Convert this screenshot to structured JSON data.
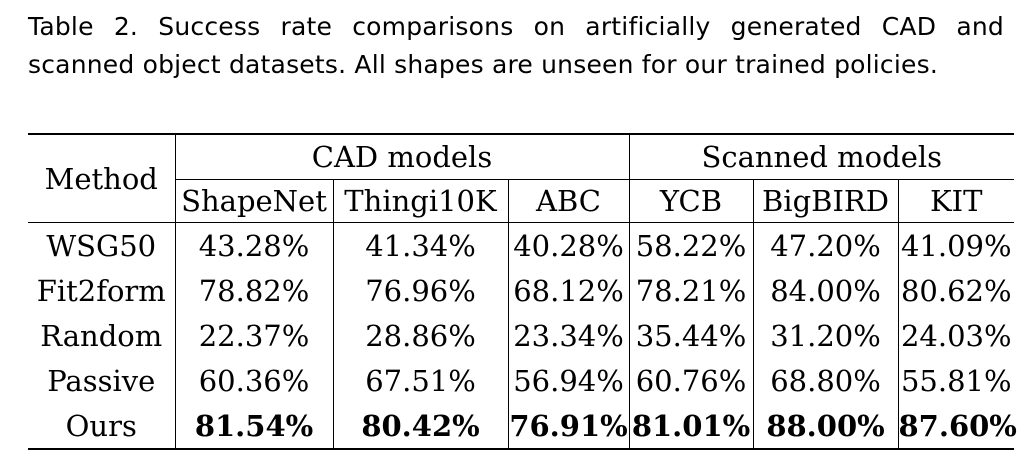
{
  "caption": {
    "line1": "Table 2. Success rate comparisons on artificially generated CAD and",
    "line2": "scanned object datasets. All shapes are unseen for our trained policies."
  },
  "table": {
    "method_header": "Method",
    "group_headers": [
      "CAD models",
      "Scanned models"
    ],
    "columns": [
      "ShapeNet",
      "Thingi10K",
      "ABC",
      "YCB",
      "BigBIRD",
      "KIT"
    ],
    "rows": [
      {
        "method": "WSG50",
        "values": [
          "43.28%",
          "41.34%",
          "40.28%",
          "58.22%",
          "47.20%",
          "41.09%"
        ]
      },
      {
        "method": "Fit2form",
        "values": [
          "78.82%",
          "76.96%",
          "68.12%",
          "78.21%",
          "84.00%",
          "80.62%"
        ]
      },
      {
        "method": "Random",
        "values": [
          "22.37%",
          "28.86%",
          "23.34%",
          "35.44%",
          "31.20%",
          "24.03%"
        ]
      },
      {
        "method": "Passive",
        "values": [
          "60.36%",
          "67.51%",
          "56.94%",
          "60.76%",
          "68.80%",
          "55.81%"
        ]
      },
      {
        "method": "Ours",
        "values": [
          "81.54%",
          "80.42%",
          "76.91%",
          "81.01%",
          "88.00%",
          "87.60%"
        ],
        "bold": true
      }
    ]
  }
}
